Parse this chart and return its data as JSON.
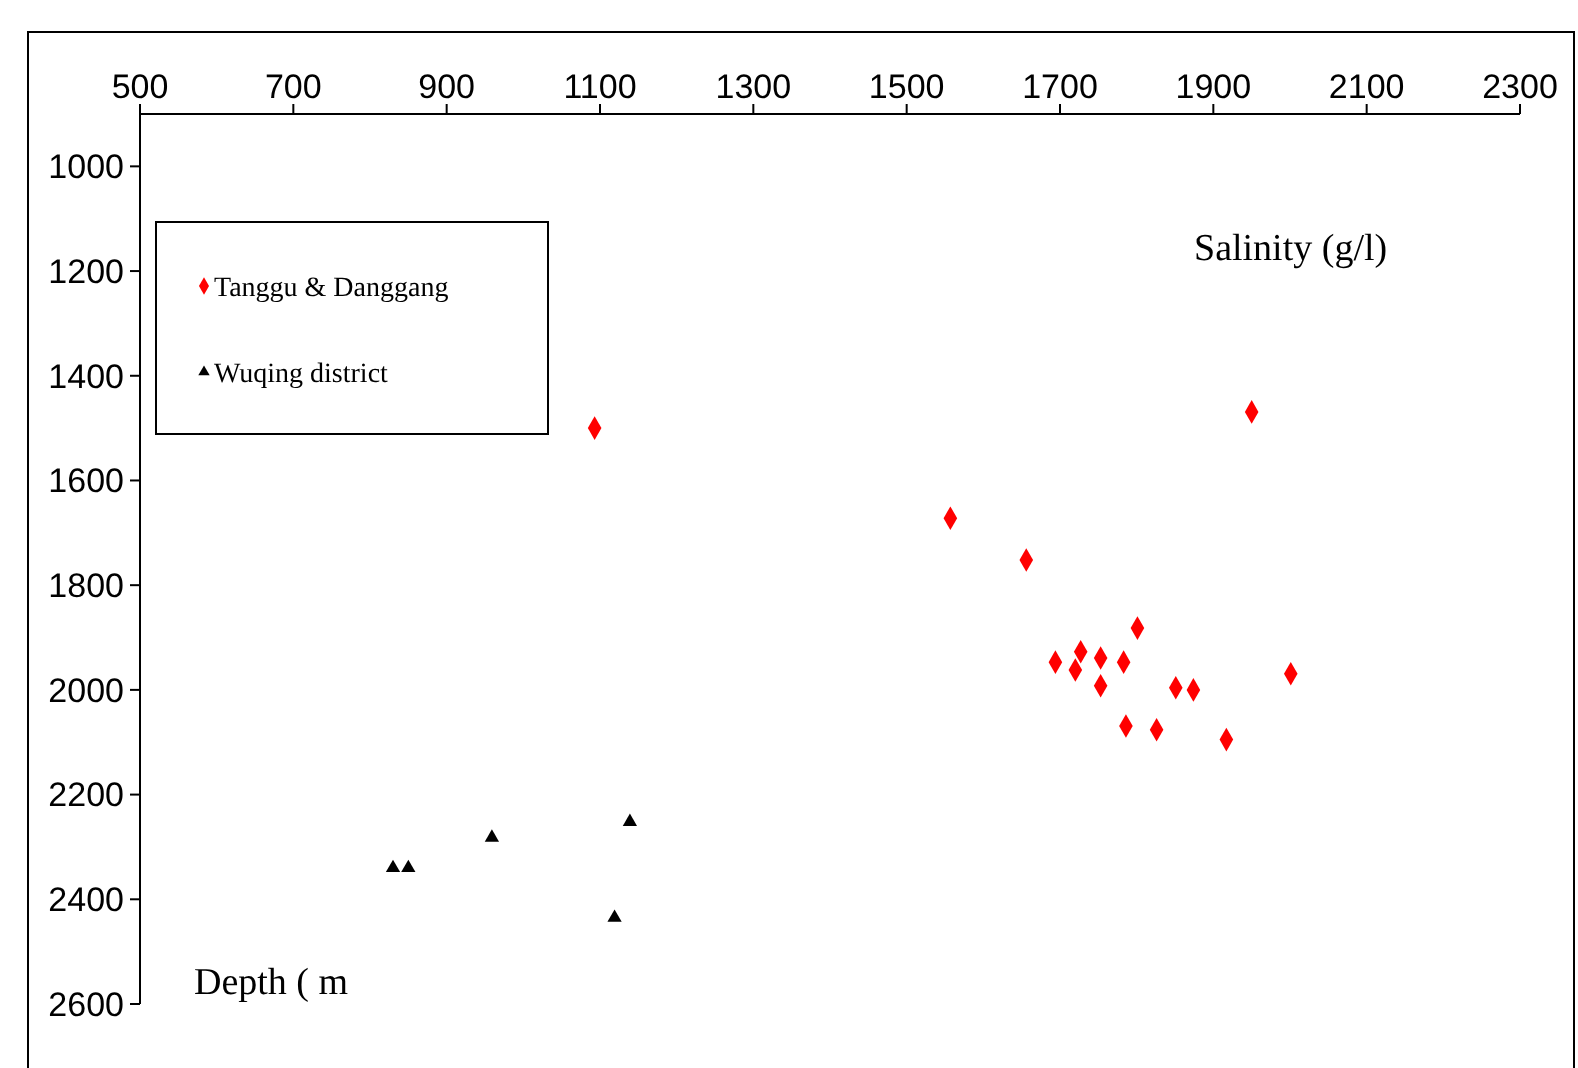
{
  "chart_data": {
    "type": "scatter",
    "xlabel": "Salinity (g/l)",
    "ylabel": "Depth ( m",
    "xlim": [
      500,
      2300
    ],
    "ylim": [
      2600,
      900
    ],
    "xticks": [
      500,
      700,
      900,
      1100,
      1300,
      1500,
      1700,
      1900,
      2100,
      2300
    ],
    "yticks": [
      1000,
      1200,
      1400,
      1600,
      1800,
      2000,
      2200,
      2400,
      2600
    ],
    "grid": false,
    "legend": "top left",
    "series": [
      {
        "name": "Tanggu & Danggang",
        "color": "#ff0000",
        "marker": "diamond",
        "x": [
          1093,
          1950,
          1557,
          1656,
          1801,
          1694,
          1720,
          1727,
          1753,
          1783,
          1753,
          1851,
          1874,
          2001,
          1786,
          1826,
          1917
        ],
        "values": [
          1500,
          1469,
          1672,
          1752,
          1882,
          1947,
          1962,
          1927,
          1939,
          1947,
          1992,
          1996,
          2000,
          1969,
          2069,
          2076,
          2095
        ]
      },
      {
        "name": "Wuqing district",
        "color": "#000000",
        "marker": "triangle",
        "x": [
          830,
          850,
          959,
          1139,
          1119
        ],
        "values": [
          2340,
          2340,
          2282,
          2252,
          2435
        ]
      }
    ]
  }
}
